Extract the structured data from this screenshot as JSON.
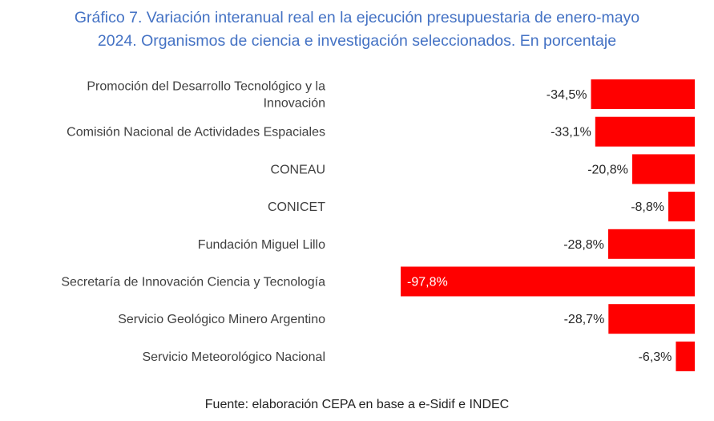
{
  "title_lines": [
    "Gráfico 7. Variación interanual real en la ejecución presupuestaria de enero-mayo",
    "2024. Organismos de ciencia e investigación seleccionados. En porcentaje"
  ],
  "source": "Fuente: elaboración CEPA en base a e-Sidif e INDEC",
  "chart_data": {
    "type": "bar",
    "orientation": "horizontal",
    "title": "Gráfico 7. Variación interanual real en la ejecución presupuestaria de enero-mayo 2024. Organismos de ciencia e investigación seleccionados. En porcentaje",
    "categories": [
      [
        "Promoción del Desarrollo Tecnológico y la",
        "Innovación"
      ],
      [
        "Comisión Nacional de Actividades Espaciales"
      ],
      [
        "CONEAU"
      ],
      [
        "CONICET"
      ],
      [
        "Fundación Miguel Lillo"
      ],
      [
        "Secretaría de Innovación Ciencia y Tecnología"
      ],
      [
        "Servicio Geológico Minero Argentino"
      ],
      [
        "Servicio Meteorológico Nacional"
      ]
    ],
    "values": [
      -34.5,
      -33.1,
      -20.8,
      -8.8,
      -28.8,
      -97.8,
      -28.7,
      -6.3
    ],
    "value_labels": [
      "-34,5%",
      "-33,1%",
      "-20,8%",
      "-8,8%",
      "-28,8%",
      "-97,8%",
      "-28,7%",
      "-6,3%"
    ],
    "bar_color": "#ff0000",
    "xlim": [
      -100,
      0
    ],
    "grid": false,
    "legend": "none"
  }
}
